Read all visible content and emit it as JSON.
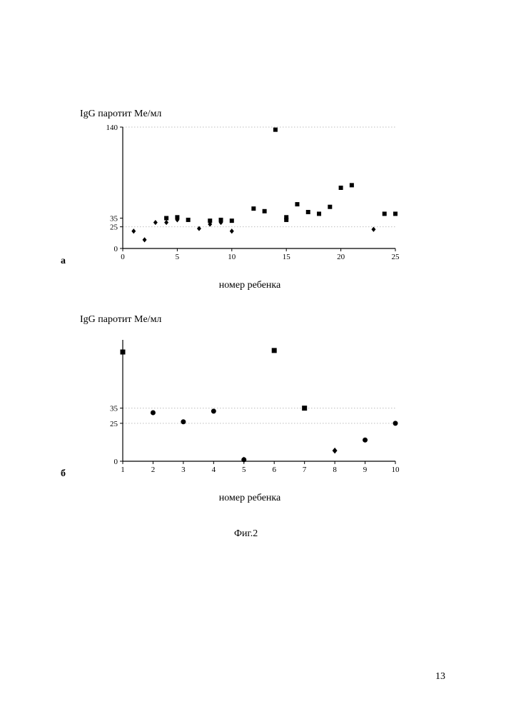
{
  "page_number": "13",
  "figure_caption": "Фиг.2",
  "chart_a": {
    "panel_label": "а",
    "y_title": "IgG паротит Me/мл",
    "x_title": "номер ребенка",
    "type": "scatter",
    "xlim": [
      0,
      25
    ],
    "ylim": [
      0,
      140
    ],
    "xticks": [
      0,
      5,
      10,
      15,
      20,
      25
    ],
    "yticks": [
      0,
      25,
      35,
      140
    ],
    "gridlines_y": [
      25,
      140
    ],
    "grid_color": "#bdbdbd",
    "axis_color": "#000000",
    "background_color": "#ffffff",
    "tick_fontsize": 11,
    "label_fontsize": 14,
    "marker_size": 6,
    "series": [
      {
        "marker": "diamond",
        "color": "#000000",
        "points": [
          {
            "x": 1,
            "y": 20
          },
          {
            "x": 2,
            "y": 10
          },
          {
            "x": 3,
            "y": 30
          },
          {
            "x": 4,
            "y": 30
          },
          {
            "x": 5,
            "y": 33
          },
          {
            "x": 7,
            "y": 23
          },
          {
            "x": 8,
            "y": 28
          },
          {
            "x": 9,
            "y": 30
          },
          {
            "x": 10,
            "y": 20
          },
          {
            "x": 23,
            "y": 22
          }
        ]
      },
      {
        "marker": "square",
        "color": "#000000",
        "points": [
          {
            "x": 4,
            "y": 35
          },
          {
            "x": 5,
            "y": 36
          },
          {
            "x": 6,
            "y": 33
          },
          {
            "x": 8,
            "y": 32
          },
          {
            "x": 9,
            "y": 33
          },
          {
            "x": 10,
            "y": 32
          },
          {
            "x": 12,
            "y": 46
          },
          {
            "x": 13,
            "y": 43
          },
          {
            "x": 14,
            "y": 137
          },
          {
            "x": 15,
            "y": 33
          },
          {
            "x": 15,
            "y": 36
          },
          {
            "x": 16,
            "y": 51
          },
          {
            "x": 17,
            "y": 42
          },
          {
            "x": 18,
            "y": 40
          },
          {
            "x": 19,
            "y": 48
          },
          {
            "x": 20,
            "y": 70
          },
          {
            "x": 21,
            "y": 73
          },
          {
            "x": 24,
            "y": 40
          },
          {
            "x": 25,
            "y": 40
          }
        ]
      }
    ]
  },
  "chart_b": {
    "panel_label": "б",
    "y_title": "IgG паротит Me/мл",
    "x_title": "номер ребенка",
    "type": "scatter",
    "xlim": [
      1,
      10
    ],
    "ylim": [
      0,
      80
    ],
    "xticks": [
      1,
      2,
      3,
      4,
      5,
      6,
      7,
      8,
      9,
      10
    ],
    "yticks": [
      0,
      25,
      35
    ],
    "gridlines_y": [
      25,
      35
    ],
    "grid_color": "#bdbdbd",
    "axis_color": "#000000",
    "background_color": "#ffffff",
    "tick_fontsize": 11,
    "label_fontsize": 14,
    "marker_size": 7,
    "series": [
      {
        "marker": "diamond",
        "color": "#000000",
        "points": [
          {
            "x": 5,
            "y": 1
          },
          {
            "x": 8,
            "y": 7
          }
        ]
      },
      {
        "marker": "square",
        "color": "#000000",
        "points": [
          {
            "x": 1,
            "y": 72
          },
          {
            "x": 6,
            "y": 73
          },
          {
            "x": 7,
            "y": 35
          }
        ]
      },
      {
        "marker": "circle",
        "color": "#000000",
        "points": [
          {
            "x": 2,
            "y": 32
          },
          {
            "x": 3,
            "y": 26
          },
          {
            "x": 4,
            "y": 33
          },
          {
            "x": 5,
            "y": 1
          },
          {
            "x": 9,
            "y": 14
          },
          {
            "x": 10,
            "y": 25
          }
        ]
      }
    ]
  }
}
